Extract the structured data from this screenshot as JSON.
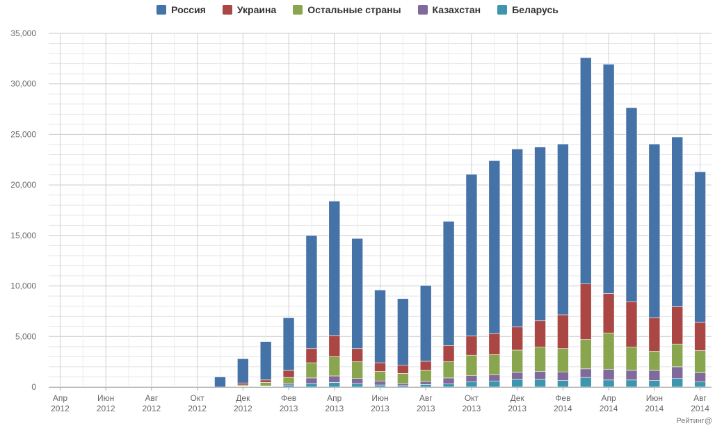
{
  "chart_data": {
    "type": "bar",
    "stacked": true,
    "legend_position": "top-center",
    "grid": true,
    "ylim": [
      0,
      35000
    ],
    "y_ticks": [
      "0",
      "5,000",
      "10,000",
      "15,000",
      "20,000",
      "25,000",
      "30,000",
      "35,000"
    ],
    "y_tick_values": [
      0,
      5000,
      10000,
      15000,
      20000,
      25000,
      30000,
      35000
    ],
    "x_tick_labels": [
      {
        "month": "Апр",
        "year": "2012",
        "index": 0
      },
      {
        "month": "Июн",
        "year": "2012",
        "index": 2
      },
      {
        "month": "Авг",
        "year": "2012",
        "index": 4
      },
      {
        "month": "Окт",
        "year": "2012",
        "index": 6
      },
      {
        "month": "Дек",
        "year": "2012",
        "index": 8
      },
      {
        "month": "Фев",
        "year": "2013",
        "index": 10
      },
      {
        "month": "Апр",
        "year": "2013",
        "index": 12
      },
      {
        "month": "Июн",
        "year": "2013",
        "index": 14
      },
      {
        "month": "Авг",
        "year": "2013",
        "index": 16
      },
      {
        "month": "Окт",
        "year": "2013",
        "index": 18
      },
      {
        "month": "Дек",
        "year": "2013",
        "index": 20
      },
      {
        "month": "Фев",
        "year": "2014",
        "index": 22
      },
      {
        "month": "Апр",
        "year": "2014",
        "index": 24
      },
      {
        "month": "Июн",
        "year": "2014",
        "index": 26
      },
      {
        "month": "Авг",
        "year": "2014",
        "index": 28
      }
    ],
    "categories": [
      "2012-04",
      "2012-05",
      "2012-06",
      "2012-07",
      "2012-08",
      "2012-09",
      "2012-10",
      "2012-11",
      "2012-12",
      "2013-01",
      "2013-02",
      "2013-03",
      "2013-04",
      "2013-05",
      "2013-06",
      "2013-07",
      "2013-08",
      "2013-09",
      "2013-10",
      "2013-11",
      "2013-12",
      "2014-01",
      "2014-02",
      "2014-03",
      "2014-04",
      "2014-05",
      "2014-06",
      "2014-07",
      "2014-08"
    ],
    "series": [
      {
        "name": "Беларусь",
        "color": "#3d96ae",
        "values": [
          0,
          0,
          0,
          0,
          0,
          0,
          0,
          0,
          50,
          50,
          200,
          350,
          450,
          350,
          200,
          150,
          250,
          300,
          500,
          600,
          750,
          750,
          650,
          950,
          700,
          700,
          650,
          850,
          500
        ]
      },
      {
        "name": "Казахстан",
        "color": "#80699b",
        "values": [
          0,
          0,
          0,
          0,
          0,
          0,
          0,
          0,
          30,
          50,
          150,
          550,
          650,
          500,
          400,
          200,
          300,
          600,
          650,
          600,
          700,
          800,
          850,
          850,
          1050,
          950,
          1000,
          1150,
          900
        ]
      },
      {
        "name": "Остальные страны",
        "color": "#89a54e",
        "values": [
          0,
          0,
          0,
          0,
          0,
          0,
          0,
          0,
          120,
          350,
          600,
          1500,
          1900,
          1650,
          950,
          1000,
          1100,
          1600,
          2000,
          2000,
          2200,
          2400,
          2300,
          2900,
          3600,
          2300,
          1900,
          2250,
          2200
        ]
      },
      {
        "name": "Украина",
        "color": "#aa4643",
        "values": [
          0,
          0,
          0,
          0,
          0,
          0,
          0,
          0,
          200,
          250,
          700,
          1400,
          2100,
          1300,
          850,
          800,
          900,
          1600,
          1900,
          2100,
          2300,
          2600,
          3350,
          5500,
          3900,
          4500,
          3300,
          3700,
          2800
        ]
      },
      {
        "name": "Россия",
        "color": "#4572a7",
        "values": [
          0,
          0,
          0,
          0,
          0,
          0,
          0,
          1000,
          2400,
          3800,
          5200,
          11200,
          13300,
          10900,
          7200,
          6600,
          7500,
          12300,
          16000,
          17100,
          17600,
          17200,
          16900,
          22400,
          22700,
          19200,
          17200,
          16800,
          14900
        ]
      }
    ]
  },
  "legend": [
    {
      "label": "Россия",
      "color": "#4572a7"
    },
    {
      "label": "Украина",
      "color": "#aa4643"
    },
    {
      "label": "Остальные страны",
      "color": "#89a54e"
    },
    {
      "label": "Казахстан",
      "color": "#80699b"
    },
    {
      "label": "Беларусь",
      "color": "#3d96ae"
    }
  ],
  "watermark": "Рейтинг@"
}
